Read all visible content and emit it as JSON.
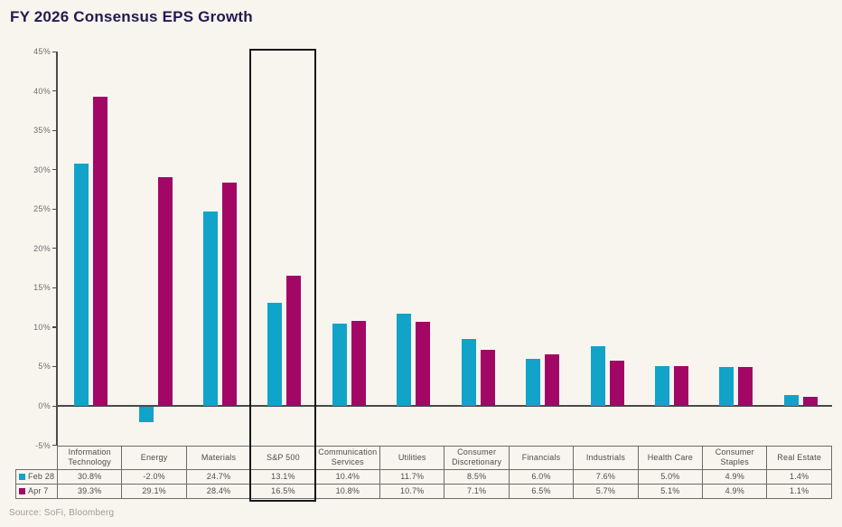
{
  "page": {
    "title": "FY 2026 Consensus EPS Growth",
    "source": "Source: SoFi, Bloomberg",
    "background_color": "#f8f5ef",
    "title_color": "#221b4e"
  },
  "chart_data": {
    "type": "bar",
    "title": "FY 2026 Consensus EPS Growth",
    "xlabel": "",
    "ylabel": "",
    "ylim": [
      -5,
      45
    ],
    "ytick_step": 5,
    "yticks": [
      45,
      40,
      35,
      30,
      25,
      20,
      15,
      10,
      5,
      0,
      -5
    ],
    "ytick_suffix": "%",
    "grid": false,
    "legend_position": "table-left",
    "value_format": "percent_1dp",
    "highlighted_category": "S&P 500",
    "categories": [
      "Information Technology",
      "Energy",
      "Materials",
      "S&P 500",
      "Communication Services",
      "Utilities",
      "Consumer Discretionary",
      "Financials",
      "Industrials",
      "Health Care",
      "Consumer Staples",
      "Real Estate"
    ],
    "series": [
      {
        "name": "Feb 28",
        "color": "#12a3c8",
        "values": [
          30.8,
          -2.0,
          24.7,
          13.1,
          10.4,
          11.7,
          8.5,
          6.0,
          7.6,
          5.0,
          4.9,
          1.4
        ]
      },
      {
        "name": "Apr 7",
        "color": "#a30766",
        "values": [
          39.3,
          29.1,
          28.4,
          16.5,
          10.8,
          10.7,
          7.1,
          6.5,
          5.7,
          5.1,
          4.9,
          1.1
        ]
      }
    ]
  }
}
